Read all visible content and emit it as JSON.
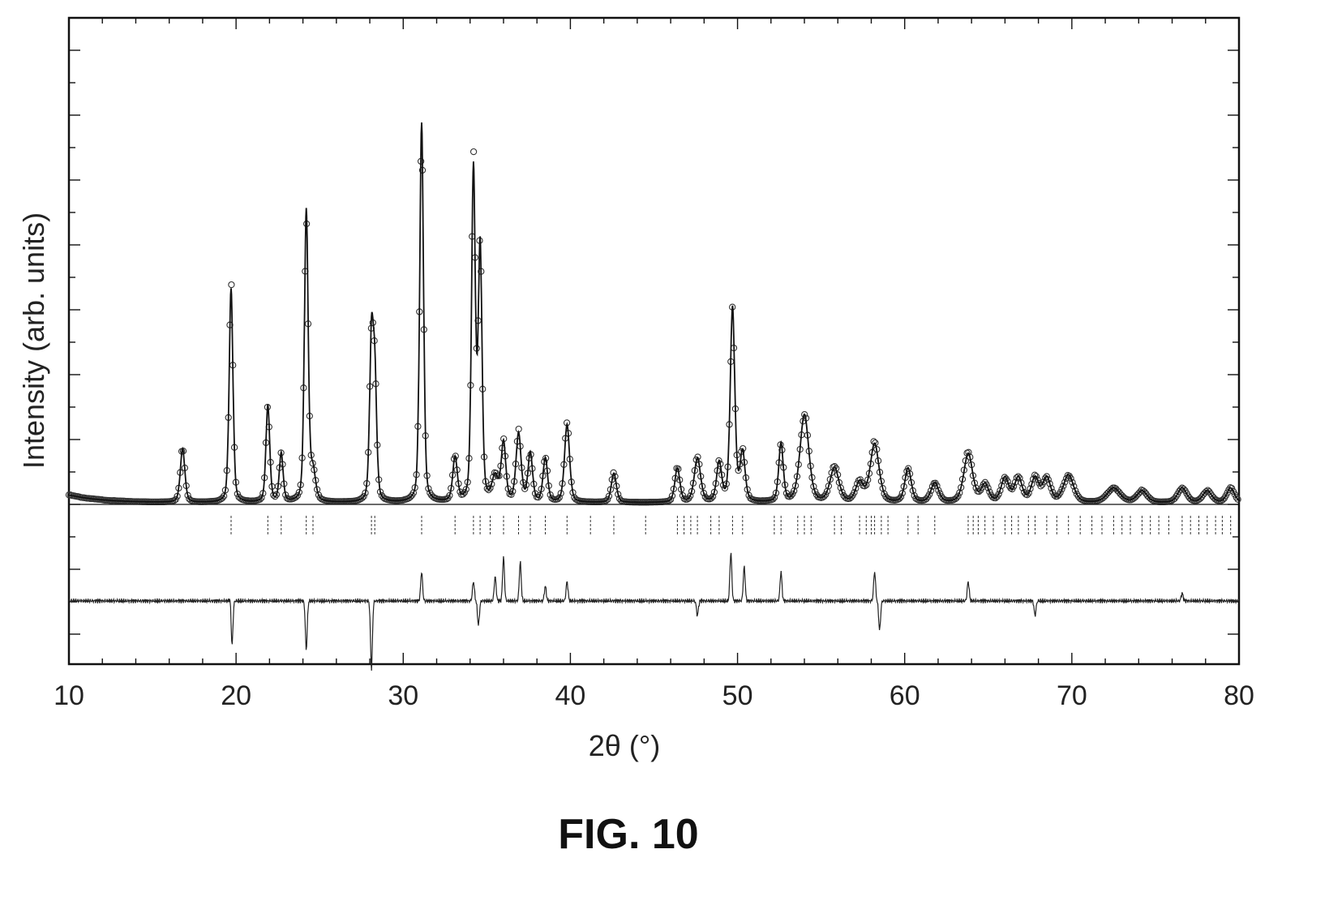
{
  "figure": {
    "caption": "FIG. 10"
  },
  "chart_data": {
    "type": "line",
    "title": "",
    "xlabel": "2θ (°)",
    "ylabel": "Intensity (arb. units)",
    "xlim": [
      10,
      80
    ],
    "x_ticks": [
      "10",
      "20",
      "30",
      "40",
      "50",
      "60",
      "70",
      "80"
    ],
    "ylim": [
      -1.0,
      5.0
    ],
    "grid": false,
    "colors": {
      "line": "#111111",
      "marker": "#333333",
      "frame": "#111111"
    },
    "background": 0.0,
    "peaks": [
      {
        "x": 16.8,
        "h": 0.55,
        "w": 0.18
      },
      {
        "x": 19.7,
        "h": 2.2,
        "w": 0.15
      },
      {
        "x": 21.9,
        "h": 1.0,
        "w": 0.15
      },
      {
        "x": 22.7,
        "h": 0.5,
        "w": 0.15
      },
      {
        "x": 24.2,
        "h": 3.0,
        "w": 0.15
      },
      {
        "x": 24.6,
        "h": 0.3,
        "w": 0.2
      },
      {
        "x": 28.1,
        "h": 1.6,
        "w": 0.15
      },
      {
        "x": 28.3,
        "h": 1.2,
        "w": 0.15
      },
      {
        "x": 31.1,
        "h": 3.9,
        "w": 0.15
      },
      {
        "x": 33.1,
        "h": 0.45,
        "w": 0.18
      },
      {
        "x": 34.2,
        "h": 3.4,
        "w": 0.15
      },
      {
        "x": 34.6,
        "h": 2.6,
        "w": 0.15
      },
      {
        "x": 35.5,
        "h": 0.25,
        "w": 0.25
      },
      {
        "x": 36.0,
        "h": 0.6,
        "w": 0.18
      },
      {
        "x": 36.9,
        "h": 0.7,
        "w": 0.2
      },
      {
        "x": 37.6,
        "h": 0.5,
        "w": 0.18
      },
      {
        "x": 38.5,
        "h": 0.45,
        "w": 0.18
      },
      {
        "x": 39.8,
        "h": 0.8,
        "w": 0.2
      },
      {
        "x": 42.6,
        "h": 0.3,
        "w": 0.2
      },
      {
        "x": 46.4,
        "h": 0.35,
        "w": 0.2
      },
      {
        "x": 47.6,
        "h": 0.45,
        "w": 0.25
      },
      {
        "x": 48.9,
        "h": 0.4,
        "w": 0.2
      },
      {
        "x": 49.7,
        "h": 2.0,
        "w": 0.18
      },
      {
        "x": 50.3,
        "h": 0.5,
        "w": 0.2
      },
      {
        "x": 52.6,
        "h": 0.6,
        "w": 0.18
      },
      {
        "x": 54.0,
        "h": 0.9,
        "w": 0.35
      },
      {
        "x": 55.8,
        "h": 0.35,
        "w": 0.35
      },
      {
        "x": 57.3,
        "h": 0.2,
        "w": 0.3
      },
      {
        "x": 58.2,
        "h": 0.6,
        "w": 0.35
      },
      {
        "x": 60.2,
        "h": 0.35,
        "w": 0.25
      },
      {
        "x": 61.8,
        "h": 0.2,
        "w": 0.3
      },
      {
        "x": 63.8,
        "h": 0.5,
        "w": 0.35
      },
      {
        "x": 64.8,
        "h": 0.18,
        "w": 0.3
      },
      {
        "x": 66.0,
        "h": 0.25,
        "w": 0.3
      },
      {
        "x": 66.8,
        "h": 0.25,
        "w": 0.3
      },
      {
        "x": 67.8,
        "h": 0.25,
        "w": 0.3
      },
      {
        "x": 68.5,
        "h": 0.25,
        "w": 0.3
      },
      {
        "x": 69.8,
        "h": 0.28,
        "w": 0.4
      },
      {
        "x": 72.5,
        "h": 0.15,
        "w": 0.5
      },
      {
        "x": 74.2,
        "h": 0.12,
        "w": 0.4
      },
      {
        "x": 76.6,
        "h": 0.15,
        "w": 0.35
      },
      {
        "x": 78.1,
        "h": 0.12,
        "w": 0.35
      },
      {
        "x": 79.5,
        "h": 0.15,
        "w": 0.3
      }
    ],
    "bragg_positions": [
      19.7,
      21.9,
      22.7,
      24.2,
      24.6,
      28.1,
      28.3,
      31.1,
      33.1,
      34.2,
      34.6,
      35.2,
      36.0,
      36.9,
      37.6,
      38.5,
      39.8,
      41.2,
      42.6,
      44.5,
      46.4,
      46.8,
      47.2,
      47.6,
      48.4,
      48.9,
      49.7,
      50.3,
      52.2,
      52.6,
      53.6,
      54.0,
      54.4,
      55.8,
      56.2,
      57.3,
      57.7,
      58.0,
      58.2,
      58.6,
      59.0,
      60.2,
      60.8,
      61.8,
      63.8,
      64.1,
      64.4,
      64.8,
      65.3,
      66.0,
      66.4,
      66.8,
      67.4,
      67.8,
      68.5,
      69.1,
      69.8,
      70.5,
      71.2,
      71.8,
      72.5,
      73.0,
      73.5,
      74.2,
      74.7,
      75.2,
      75.8,
      76.6,
      77.1,
      77.6,
      78.1,
      78.6,
      79.0,
      79.5
    ],
    "difference": [
      {
        "x": 19.7,
        "d": 0.15
      },
      {
        "x": 19.75,
        "d": -0.55
      },
      {
        "x": 24.2,
        "d": -0.5
      },
      {
        "x": 28.1,
        "d": -0.7
      },
      {
        "x": 31.1,
        "d": 0.3
      },
      {
        "x": 34.2,
        "d": 0.2
      },
      {
        "x": 34.5,
        "d": -0.25
      },
      {
        "x": 35.5,
        "d": 0.25
      },
      {
        "x": 36.0,
        "d": 0.45
      },
      {
        "x": 37.0,
        "d": 0.4
      },
      {
        "x": 38.5,
        "d": 0.15
      },
      {
        "x": 39.8,
        "d": 0.2
      },
      {
        "x": 47.6,
        "d": -0.15
      },
      {
        "x": 49.6,
        "d": 0.5
      },
      {
        "x": 50.4,
        "d": 0.35
      },
      {
        "x": 52.6,
        "d": 0.3
      },
      {
        "x": 58.2,
        "d": 0.3
      },
      {
        "x": 58.5,
        "d": -0.3
      },
      {
        "x": 63.8,
        "d": 0.2
      },
      {
        "x": 67.8,
        "d": -0.15
      },
      {
        "x": 76.6,
        "d": 0.08
      }
    ]
  }
}
